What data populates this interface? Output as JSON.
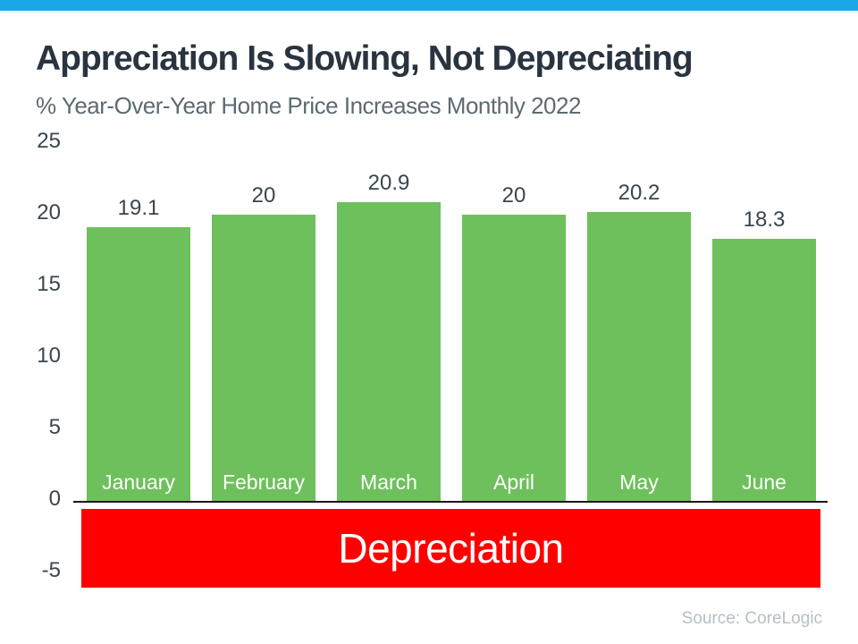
{
  "page": {
    "title": "Appreciation Is Slowing, Not Depreciating",
    "subtitle": "% Year-Over-Year Home Price Increases Monthly 2022",
    "source": "Source: CoreLogic"
  },
  "colors": {
    "accent_bar": "#18a8e8",
    "bar_green": "#6ec05c",
    "depreciation_red": "#fe0000",
    "title_text": "#2a3440",
    "subtitle_text": "#5d6a73",
    "axis_text": "#3a454e",
    "month_text": "#ffffff",
    "source_text": "#b6bfc6"
  },
  "chart_data": {
    "type": "bar",
    "title": "Appreciation Is Slowing, Not Depreciating",
    "subtitle": "% Year-Over-Year Home Price Increases Monthly 2022",
    "categories": [
      "January",
      "February",
      "March",
      "April",
      "May",
      "June"
    ],
    "values": [
      19.1,
      20,
      20.9,
      20,
      20.2,
      18.3
    ],
    "value_labels": [
      "19.1",
      "20",
      "20.9",
      "20",
      "20.2",
      "18.3"
    ],
    "y_ticks": [
      25,
      20,
      15,
      10,
      5,
      0,
      -5
    ],
    "ylim": [
      -5,
      25
    ],
    "xlabel": "",
    "ylabel": "",
    "grid": false,
    "legend": false,
    "bar_color": "#6ec05c",
    "annotation": {
      "label": "Depreciation",
      "region": "band below zero line",
      "color": "#fe0000"
    }
  },
  "depreciation_band": {
    "label": "Depreciation"
  }
}
